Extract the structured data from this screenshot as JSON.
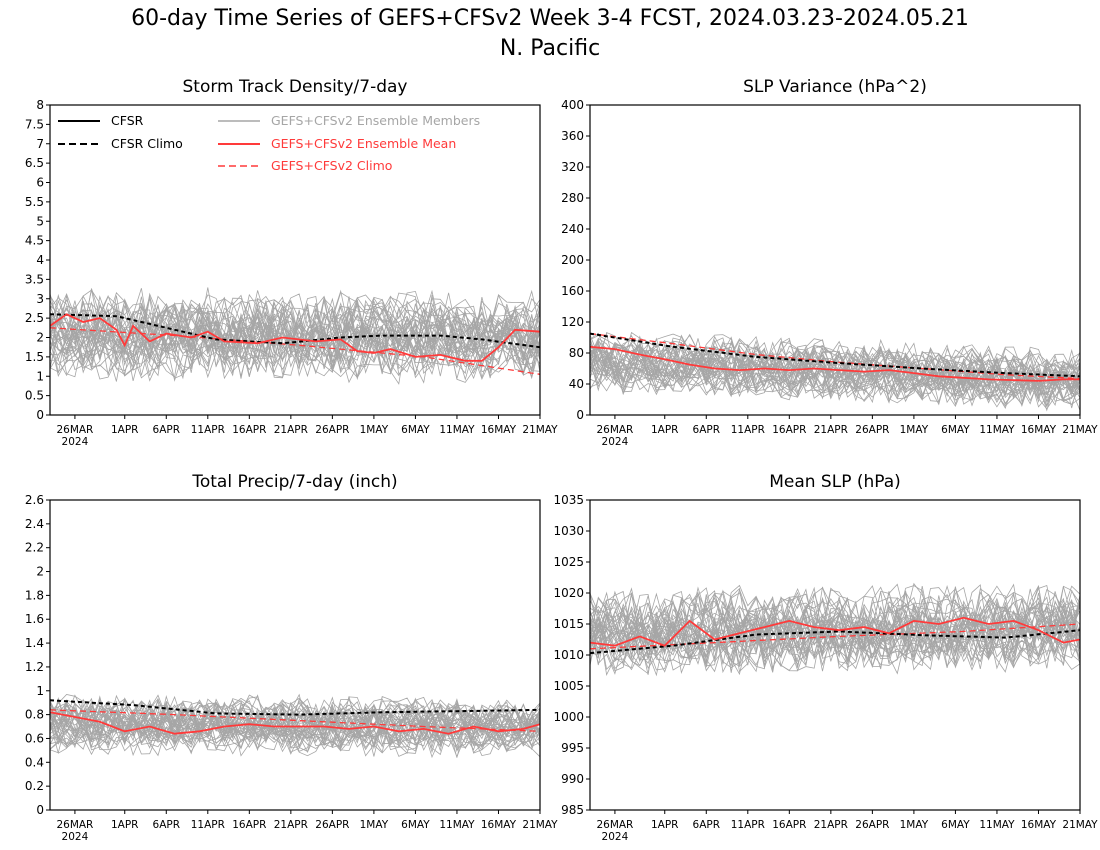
{
  "page": {
    "title_line1": "60-day Time Series of GEFS+CFSv2 Week 3-4 FCST, 2024.03.23-2024.05.21",
    "title_line2": "N. Pacific"
  },
  "legend": {
    "cfsr": "CFSR",
    "cfsr_climo": "CFSR Climo",
    "members": "GEFS+CFSv2 Ensemble Members",
    "ens_mean": "GEFS+CFSv2 Ensemble Mean",
    "ens_climo": "GEFS+CFSv2 Climo"
  },
  "colors": {
    "cfsr": "#000000",
    "members": "#a6a6a6",
    "ens_mean": "#ff3a3a",
    "ens_climo": "#ff3a3a",
    "axis": "#000000"
  },
  "x_axis": {
    "tick_labels": [
      "26MAR",
      "1APR",
      "6APR",
      "11APR",
      "16APR",
      "21APR",
      "26APR",
      "1MAY",
      "6MAY",
      "11MAY",
      "16MAY",
      "21MAY"
    ],
    "tick_days": [
      3,
      9,
      14,
      19,
      24,
      29,
      34,
      39,
      44,
      49,
      54,
      59
    ],
    "year_label": "2024",
    "range": [
      0,
      59
    ]
  },
  "chart_data": [
    {
      "type": "line",
      "title": "Storm Track Density/7-day",
      "ylim": [
        0,
        8
      ],
      "yticks": [
        "0",
        "0.5",
        "1",
        "1.5",
        "2",
        "2.5",
        "3",
        "3.5",
        "4",
        "4.5",
        "5",
        "5.5",
        "6",
        "6.5",
        "7",
        "7.5",
        "8"
      ],
      "cfsr_climo": [
        [
          0,
          2.6
        ],
        [
          8,
          2.55
        ],
        [
          15,
          2.2
        ],
        [
          20,
          1.95
        ],
        [
          28,
          1.85
        ],
        [
          35,
          2.0
        ],
        [
          40,
          2.05
        ],
        [
          47,
          2.05
        ],
        [
          52,
          1.95
        ],
        [
          59,
          1.75
        ]
      ],
      "ens_mean": [
        [
          0,
          2.3
        ],
        [
          2,
          2.6
        ],
        [
          4,
          2.4
        ],
        [
          6,
          2.5
        ],
        [
          8,
          2.2
        ],
        [
          9,
          1.8
        ],
        [
          10,
          2.3
        ],
        [
          12,
          1.9
        ],
        [
          14,
          2.1
        ],
        [
          17,
          2.0
        ],
        [
          19,
          2.15
        ],
        [
          21,
          1.9
        ],
        [
          25,
          1.85
        ],
        [
          28,
          2.0
        ],
        [
          32,
          1.9
        ],
        [
          35,
          1.95
        ],
        [
          37,
          1.65
        ],
        [
          39,
          1.6
        ],
        [
          41,
          1.7
        ],
        [
          44,
          1.5
        ],
        [
          47,
          1.55
        ],
        [
          50,
          1.4
        ],
        [
          52,
          1.4
        ],
        [
          54,
          1.75
        ],
        [
          56,
          2.2
        ],
        [
          59,
          2.15
        ]
      ],
      "ens_climo": [
        [
          0,
          2.25
        ],
        [
          15,
          2.05
        ],
        [
          30,
          1.8
        ],
        [
          45,
          1.5
        ],
        [
          59,
          1.05
        ]
      ],
      "member_spread": {
        "center": 2.1,
        "amplitude": 1.3,
        "trend": -0.1
      },
      "show_legend": true
    },
    {
      "type": "line",
      "title": "SLP Variance (hPa^2)",
      "ylim": [
        0,
        400
      ],
      "yticks": [
        "0",
        "40",
        "80",
        "120",
        "160",
        "200",
        "240",
        "280",
        "320",
        "360",
        "400"
      ],
      "cfsr_climo": [
        [
          0,
          105
        ],
        [
          10,
          88
        ],
        [
          20,
          75
        ],
        [
          30,
          67
        ],
        [
          40,
          60
        ],
        [
          50,
          54
        ],
        [
          59,
          50
        ]
      ],
      "ens_mean": [
        [
          0,
          88
        ],
        [
          3,
          85
        ],
        [
          6,
          78
        ],
        [
          9,
          72
        ],
        [
          12,
          65
        ],
        [
          15,
          60
        ],
        [
          18,
          58
        ],
        [
          21,
          60
        ],
        [
          24,
          58
        ],
        [
          27,
          60
        ],
        [
          30,
          58
        ],
        [
          33,
          56
        ],
        [
          36,
          58
        ],
        [
          39,
          54
        ],
        [
          42,
          50
        ],
        [
          45,
          48
        ],
        [
          48,
          46
        ],
        [
          51,
          45
        ],
        [
          54,
          44
        ],
        [
          57,
          46
        ],
        [
          59,
          46
        ]
      ],
      "ens_climo": [
        [
          0,
          105
        ],
        [
          10,
          92
        ],
        [
          20,
          78
        ],
        [
          30,
          68
        ],
        [
          40,
          60
        ],
        [
          50,
          52
        ],
        [
          59,
          47
        ]
      ],
      "member_spread": {
        "center": 70,
        "amplitude": 45,
        "trend": -25
      },
      "show_legend": false
    },
    {
      "type": "line",
      "title": "Total Precip/7-day (inch)",
      "ylim": [
        0,
        2.6
      ],
      "yticks": [
        "0",
        "0.2",
        "0.4",
        "0.6",
        "0.8",
        "1",
        "1.2",
        "1.4",
        "1.6",
        "1.8",
        "2",
        "2.2",
        "2.4",
        "2.6"
      ],
      "cfsr_climo": [
        [
          0,
          0.92
        ],
        [
          10,
          0.88
        ],
        [
          20,
          0.81
        ],
        [
          30,
          0.8
        ],
        [
          40,
          0.82
        ],
        [
          50,
          0.83
        ],
        [
          59,
          0.84
        ]
      ],
      "ens_mean": [
        [
          0,
          0.82
        ],
        [
          3,
          0.78
        ],
        [
          6,
          0.74
        ],
        [
          9,
          0.66
        ],
        [
          12,
          0.7
        ],
        [
          15,
          0.64
        ],
        [
          18,
          0.66
        ],
        [
          21,
          0.7
        ],
        [
          24,
          0.72
        ],
        [
          27,
          0.7
        ],
        [
          30,
          0.7
        ],
        [
          33,
          0.7
        ],
        [
          36,
          0.68
        ],
        [
          39,
          0.7
        ],
        [
          42,
          0.66
        ],
        [
          45,
          0.68
        ],
        [
          48,
          0.64
        ],
        [
          51,
          0.7
        ],
        [
          54,
          0.66
        ],
        [
          57,
          0.68
        ],
        [
          59,
          0.72
        ]
      ],
      "ens_climo": [
        [
          0,
          0.84
        ],
        [
          15,
          0.8
        ],
        [
          30,
          0.75
        ],
        [
          45,
          0.7
        ],
        [
          59,
          0.66
        ]
      ],
      "member_spread": {
        "center": 0.72,
        "amplitude": 0.28,
        "trend": -0.03
      },
      "show_legend": false
    },
    {
      "type": "line",
      "title": "Mean SLP (hPa)",
      "ylim": [
        985,
        1035
      ],
      "yticks": [
        "985",
        "990",
        "995",
        "1000",
        "1005",
        "1010",
        "1015",
        "1020",
        "1025",
        "1030",
        "1035"
      ],
      "cfsr_climo": [
        [
          0,
          1010.3
        ],
        [
          10,
          1011.5
        ],
        [
          20,
          1013.3
        ],
        [
          30,
          1013.8
        ],
        [
          40,
          1013.2
        ],
        [
          50,
          1012.8
        ],
        [
          59,
          1014.0
        ]
      ],
      "ens_mean": [
        [
          0,
          1012.0
        ],
        [
          3,
          1011.5
        ],
        [
          6,
          1013.0
        ],
        [
          9,
          1011.5
        ],
        [
          12,
          1015.5
        ],
        [
          15,
          1012.5
        ],
        [
          18,
          1013.5
        ],
        [
          21,
          1014.5
        ],
        [
          24,
          1015.5
        ],
        [
          27,
          1014.5
        ],
        [
          30,
          1014.0
        ],
        [
          33,
          1014.5
        ],
        [
          36,
          1013.5
        ],
        [
          39,
          1015.5
        ],
        [
          42,
          1015.0
        ],
        [
          45,
          1016.0
        ],
        [
          48,
          1015.0
        ],
        [
          51,
          1015.5
        ],
        [
          54,
          1014.0
        ],
        [
          57,
          1012.0
        ],
        [
          59,
          1012.5
        ]
      ],
      "ens_climo": [
        [
          0,
          1011.0
        ],
        [
          15,
          1012.0
        ],
        [
          30,
          1013.0
        ],
        [
          45,
          1013.8
        ],
        [
          59,
          1015.0
        ]
      ],
      "member_spread": {
        "center": 1013.5,
        "amplitude": 8,
        "trend": 1
      },
      "show_legend": false
    }
  ]
}
